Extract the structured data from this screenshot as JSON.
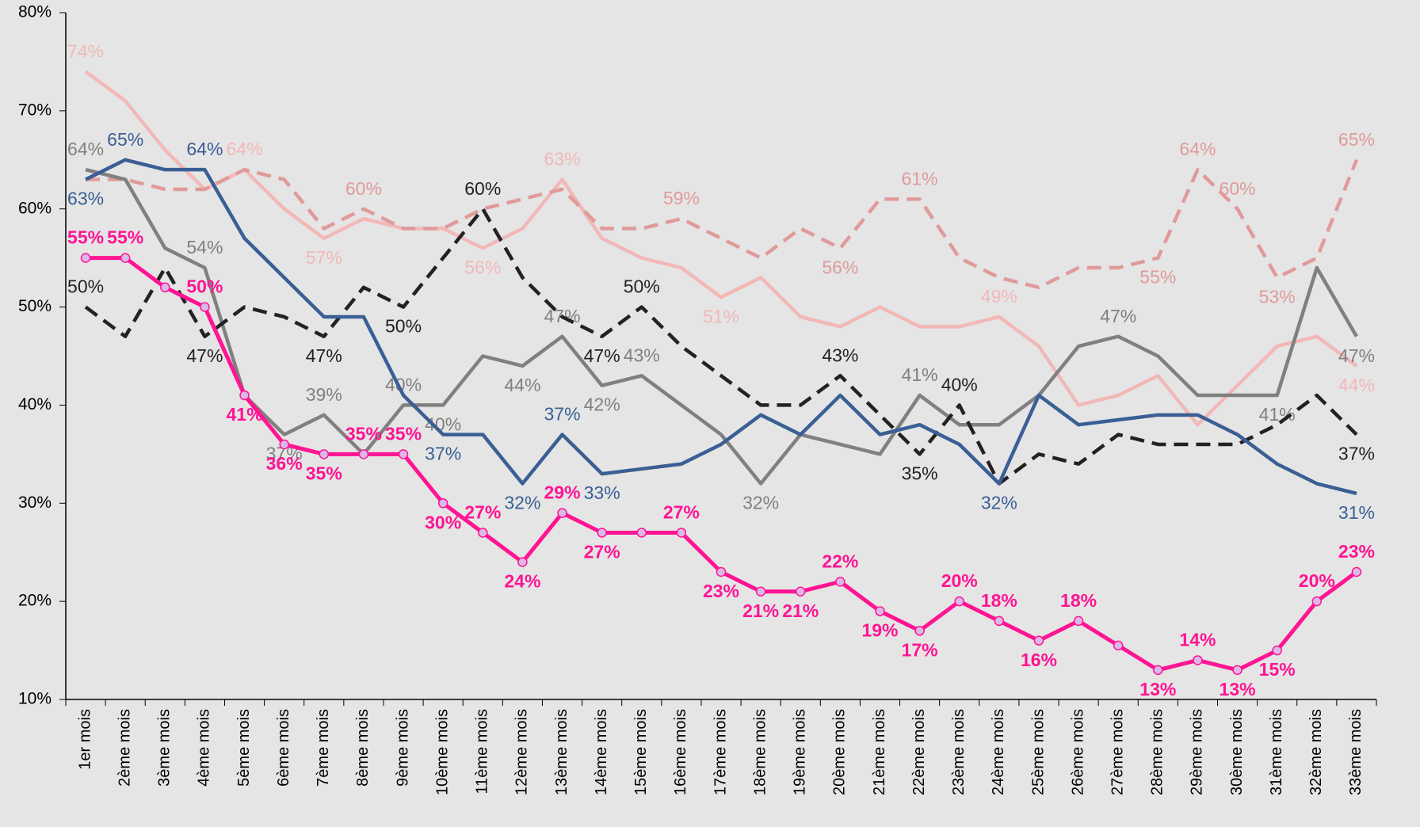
{
  "chart_data": {
    "type": "line",
    "categories": [
      "1er mois",
      "2ème mois",
      "3ème mois",
      "4ème mois",
      "5ème mois",
      "6ème mois",
      "7ème mois",
      "8ème mois",
      "9ème mois",
      "10ème mois",
      "11ème mois",
      "12ème mois",
      "13ème mois",
      "14ème mois",
      "15ème mois",
      "16ème mois",
      "17ème mois",
      "18ème mois",
      "19ème mois",
      "20ème mois",
      "21ème mois",
      "22ème mois",
      "23ème mois",
      "24ème mois",
      "25ème mois",
      "26ème mois",
      "27ème mois",
      "28ème mois",
      "29ème mois",
      "30ème mois",
      "31ème mois",
      "32ème mois",
      "33ème mois"
    ],
    "ylim": [
      10,
      80
    ],
    "yticks": [
      {
        "value": 10,
        "label": "10%"
      },
      {
        "value": 20,
        "label": "20%"
      },
      {
        "value": 30,
        "label": "30%"
      },
      {
        "value": 40,
        "label": "40%"
      },
      {
        "value": 50,
        "label": "50%"
      },
      {
        "value": 60,
        "label": "60%"
      },
      {
        "value": 70,
        "label": "70%"
      },
      {
        "value": 80,
        "label": "80%"
      }
    ],
    "series": [
      {
        "color": "#f2b8b8",
        "dash": false,
        "values": [
          74,
          71,
          66,
          62,
          64,
          60,
          57,
          59,
          58,
          58,
          56,
          58,
          63,
          57,
          55,
          54,
          51,
          53,
          49,
          48,
          50,
          48,
          48,
          49,
          46,
          40,
          41,
          43,
          38,
          42,
          46,
          47,
          44
        ],
        "value_labels": [
          "74%",
          null,
          null,
          null,
          "64%",
          null,
          "57%",
          null,
          null,
          null,
          "56%",
          null,
          "63%",
          null,
          null,
          null,
          "51%",
          null,
          null,
          null,
          null,
          null,
          null,
          "49%",
          null,
          null,
          null,
          null,
          null,
          null,
          null,
          null,
          "44%"
        ]
      },
      {
        "color": "#e09a9a",
        "dash": true,
        "values": [
          63,
          63,
          62,
          62,
          64,
          63,
          58,
          60,
          58,
          58,
          60,
          61,
          62,
          58,
          58,
          59,
          57,
          55,
          58,
          56,
          61,
          61,
          55,
          53,
          52,
          54,
          54,
          55,
          64,
          60,
          53,
          55,
          65
        ],
        "value_labels": [
          null,
          null,
          null,
          null,
          null,
          null,
          null,
          "60%",
          null,
          null,
          null,
          null,
          null,
          null,
          null,
          "59%",
          null,
          null,
          null,
          "56%",
          null,
          "61%",
          null,
          null,
          null,
          null,
          null,
          "55%",
          "64%",
          "60%",
          "53%",
          null,
          "65%"
        ]
      },
      {
        "color": "#808080",
        "dash": false,
        "values": [
          64,
          63,
          56,
          54,
          41,
          37,
          39,
          35,
          40,
          40,
          45,
          44,
          47,
          42,
          43,
          40,
          37,
          32,
          37,
          36,
          35,
          41,
          38,
          38,
          41,
          46,
          47,
          45,
          41,
          41,
          41,
          54,
          47
        ],
        "value_labels": [
          "64%",
          null,
          null,
          "54%",
          null,
          "37%",
          "39%",
          null,
          "40%",
          "40%",
          null,
          "44%",
          "47%",
          "42%",
          "43%",
          null,
          null,
          "32%",
          null,
          null,
          null,
          "41%",
          null,
          null,
          null,
          null,
          "47%",
          null,
          null,
          null,
          "41%",
          null,
          "47%"
        ]
      },
      {
        "color": "#222222",
        "dash": true,
        "values": [
          50,
          47,
          54,
          47,
          50,
          49,
          47,
          52,
          50,
          55,
          60,
          53,
          49,
          47,
          50,
          46,
          43,
          40,
          40,
          43,
          39,
          35,
          40,
          32,
          35,
          34,
          37,
          36,
          36,
          36,
          38,
          41,
          37
        ],
        "value_labels": [
          "50%",
          null,
          null,
          "47%",
          null,
          null,
          "47%",
          null,
          "50%",
          null,
          "60%",
          null,
          null,
          "47%",
          "50%",
          null,
          null,
          null,
          null,
          "43%",
          null,
          "35%",
          "40%",
          null,
          null,
          null,
          null,
          null,
          null,
          null,
          null,
          null,
          "37%"
        ]
      },
      {
        "color": "#3a5f94",
        "dash": false,
        "values": [
          63,
          65,
          64,
          64,
          57,
          53,
          49,
          49,
          41,
          37,
          37,
          32,
          37,
          33,
          33.5,
          34,
          36,
          39,
          37,
          41,
          37,
          38,
          36,
          32,
          41,
          38,
          38.5,
          39,
          39,
          37,
          34,
          32,
          31
        ],
        "value_labels": [
          "63%",
          "65%",
          null,
          "64%",
          null,
          null,
          null,
          null,
          null,
          "37%",
          null,
          "32%",
          "37%",
          "33%",
          null,
          null,
          null,
          null,
          null,
          null,
          null,
          null,
          null,
          "32%",
          null,
          null,
          null,
          null,
          null,
          null,
          null,
          null,
          "31%"
        ]
      },
      {
        "color": "#ff1493",
        "dash": false,
        "markers": true,
        "bold": true,
        "values": [
          55,
          55,
          52,
          50,
          41,
          36,
          35,
          35,
          35,
          30,
          27,
          24,
          29,
          27,
          27,
          27,
          23,
          21,
          21,
          22,
          19,
          17,
          20,
          18,
          16,
          18,
          15.5,
          13,
          14,
          13,
          15,
          20,
          23
        ],
        "value_labels": [
          "55%",
          "55%",
          null,
          "50%",
          "41%",
          "36%",
          "35%",
          "35%",
          "35%",
          "30%",
          "27%",
          "24%",
          "29%",
          "27%",
          null,
          "27%",
          "23%",
          "21%",
          "21%",
          "22%",
          "19%",
          "17%",
          "20%",
          "18%",
          "16%",
          "18%",
          null,
          "13%",
          "14%",
          "13%",
          "15%",
          "20%",
          "23%"
        ]
      }
    ]
  }
}
